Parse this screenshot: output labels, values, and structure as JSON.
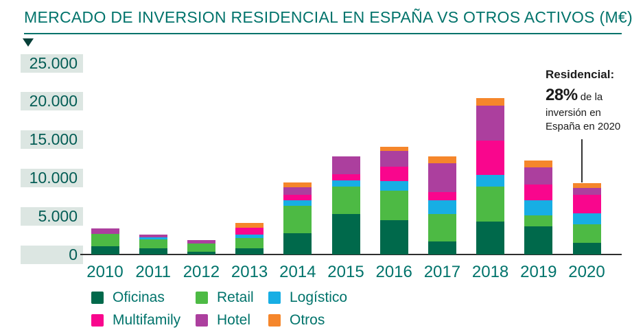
{
  "title": "MERCADO DE INVERSION RESIDENCIAL  EN ESPAÑA VS OTROS ACTIVOS (M€)",
  "colors": {
    "accent": "#00736B",
    "axis": "#2E2E2E",
    "tick_box": "#DCE6E2",
    "annotation_text": "#1B1B1B"
  },
  "chart_data": {
    "type": "bar",
    "stacked": true,
    "title": "MERCADO DE INVERSION RESIDENCIAL EN ESPAÑA VS OTROS ACTIVOS (M€)",
    "xlabel": "",
    "ylabel": "",
    "ylim": [
      0,
      25000
    ],
    "grid": false,
    "legend_position": "bottom",
    "categories": [
      "2010",
      "2011",
      "2012",
      "2013",
      "2014",
      "2015",
      "2016",
      "2017",
      "2018",
      "2019",
      "2020"
    ],
    "yticks": [
      {
        "value": 0,
        "label": "0"
      },
      {
        "value": 5000,
        "label": "5.000"
      },
      {
        "value": 10000,
        "label": "10.000"
      },
      {
        "value": 15000,
        "label": "15.000"
      },
      {
        "value": 20000,
        "label": "20.000"
      },
      {
        "value": 25000,
        "label": "25.000"
      }
    ],
    "series": [
      {
        "name": "Oficinas",
        "color": "#00694B",
        "values": [
          1050,
          800,
          400,
          800,
          2750,
          5300,
          4500,
          1700,
          4300,
          3650,
          1500
        ]
      },
      {
        "name": "Retail",
        "color": "#4DBA44",
        "values": [
          1650,
          1150,
          1050,
          1350,
          3650,
          3600,
          3800,
          3600,
          4550,
          1450,
          2400
        ]
      },
      {
        "name": "Logístico",
        "color": "#17AEE4",
        "values": [
          0,
          300,
          0,
          450,
          700,
          800,
          1300,
          1800,
          1500,
          1950,
          1500
        ]
      },
      {
        "name": "Multifamily",
        "color": "#F9068D",
        "values": [
          0,
          0,
          0,
          900,
          700,
          800,
          1900,
          1050,
          4500,
          2100,
          2400
        ]
      },
      {
        "name": "Hotel",
        "color": "#AC3F9E",
        "values": [
          700,
          350,
          400,
          0,
          1000,
          2300,
          2050,
          3750,
          4550,
          2200,
          900
        ]
      },
      {
        "name": "Otros",
        "color": "#F5862B",
        "values": [
          0,
          0,
          0,
          650,
          600,
          0,
          550,
          950,
          1000,
          900,
          600
        ]
      }
    ],
    "totals": [
      3400,
      2600,
      1850,
      4150,
      9400,
      12800,
      14100,
      12850,
      20400,
      12250,
      9300
    ]
  },
  "annotation": {
    "heading": "Residencial:",
    "percent": "28%",
    "line1": "de la",
    "line2": "inversión en",
    "line3": "España en 2020"
  }
}
